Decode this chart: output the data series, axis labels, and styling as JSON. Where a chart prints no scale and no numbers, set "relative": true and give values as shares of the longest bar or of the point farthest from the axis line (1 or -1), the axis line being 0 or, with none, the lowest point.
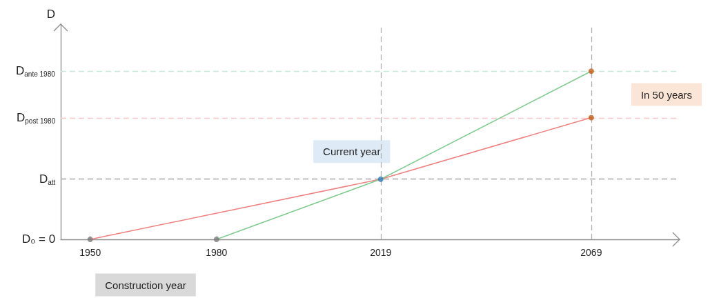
{
  "chart_data": {
    "type": "line",
    "ylabel": "D",
    "relative": true,
    "xlim": [
      1943,
      2090
    ],
    "xticks": [
      1950,
      1980,
      2019,
      2069
    ],
    "series": [
      {
        "color": "#f08080",
        "x": [
          1950,
          2019,
          2069
        ],
        "values": [
          0,
          0.358,
          0.724
        ]
      },
      {
        "color": "#80cc90",
        "x": [
          1980,
          2019,
          2069
        ],
        "values": [
          0,
          0.358,
          1
        ]
      },
      {
        "type": "scatter",
        "x": [
          1950,
          1980,
          2019,
          2069,
          2069
        ],
        "values": [
          0,
          0,
          0.358,
          1,
          0.724
        ],
        "colors": [
          "#7a7a7a",
          "#7a7a7a",
          "#2e75b6",
          "#c55a11",
          "#c55a11"
        ]
      }
    ],
    "ref_lines": [
      {
        "axis": "y",
        "value": 0.358,
        "label": "D$_{att}$",
        "color": "#a6a6a6",
        "line_style": "dashed"
      },
      {
        "axis": "y",
        "value": 0.724,
        "label": "D$_{post 1980}$",
        "color": "#f8c8c8",
        "line_style": "dashed"
      },
      {
        "axis": "y",
        "value": 1,
        "label": "D$_{ante 1980}$",
        "color": "#c8e8d8",
        "line_style": "dashed"
      },
      {
        "axis": "x",
        "value": 2019,
        "color": "#b0b0b0",
        "line_style": "dashed"
      },
      {
        "axis": "x",
        "value": 2069,
        "color": "#b0b0b0",
        "line_style": "dashed"
      }
    ],
    "annotations": [
      {
        "text": "Current year",
        "x": 2019,
        "y": 0.358
      },
      "In 50 years",
      "Construction year",
      "D₀ = 0"
    ]
  }
}
